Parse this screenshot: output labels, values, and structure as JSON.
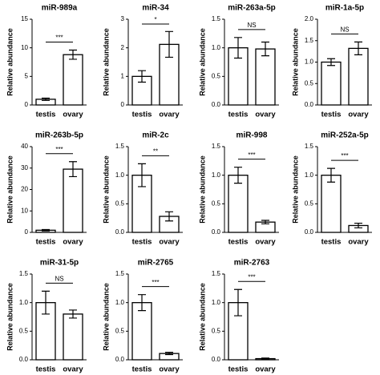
{
  "chart_data": [
    {
      "type": "bar",
      "title": "miR-989a",
      "y_label": "Relative abundance",
      "categories": [
        "testis",
        "ovary"
      ],
      "values": [
        1.0,
        8.8
      ],
      "errors": [
        0.2,
        0.8
      ],
      "annotation": "***",
      "ylim": [
        0,
        15
      ],
      "yticks": [
        0,
        5,
        10,
        15
      ]
    },
    {
      "type": "bar",
      "title": "miR-34",
      "y_label": "Relative abundance",
      "categories": [
        "testis",
        "ovary"
      ],
      "values": [
        1.0,
        2.12
      ],
      "errors": [
        0.2,
        0.45
      ],
      "annotation": "*",
      "ylim": [
        0,
        3
      ],
      "yticks": [
        0,
        1,
        2,
        3
      ]
    },
    {
      "type": "bar",
      "title": "miR-263a-5p",
      "y_label": "Relative abundance",
      "categories": [
        "testis",
        "ovary"
      ],
      "values": [
        1.0,
        0.98
      ],
      "errors": [
        0.18,
        0.12
      ],
      "annotation": "NS",
      "ylim": [
        0,
        1.5
      ],
      "yticks": [
        {
          "value": 0,
          "label": "0.0"
        },
        0.5,
        {
          "value": 1,
          "label": "1.0"
        },
        1.5
      ]
    },
    {
      "type": "bar",
      "title": "miR-1a-5p",
      "y_label": "Relative abundance",
      "categories": [
        "testis",
        "ovary"
      ],
      "values": [
        1.0,
        1.32
      ],
      "errors": [
        0.08,
        0.15
      ],
      "annotation": "NS",
      "ylim": [
        0,
        2
      ],
      "yticks": [
        {
          "value": 0,
          "label": "0.0"
        },
        0.5,
        {
          "value": 1,
          "label": "1.0"
        },
        1.5,
        {
          "value": 2,
          "label": "2.0"
        }
      ]
    },
    {
      "type": "bar",
      "title": "miR-263b-5p",
      "y_label": "Relative abundance",
      "categories": [
        "testis",
        "ovary"
      ],
      "values": [
        1.0,
        29.5
      ],
      "errors": [
        0.3,
        3.5
      ],
      "annotation": "***",
      "ylim": [
        0,
        40
      ],
      "yticks": [
        0,
        10,
        20,
        30,
        40
      ]
    },
    {
      "type": "bar",
      "title": "miR-2c",
      "y_label": "Relative abundance",
      "categories": [
        "testis",
        "ovary"
      ],
      "values": [
        1.0,
        0.28
      ],
      "errors": [
        0.2,
        0.08
      ],
      "annotation": "**",
      "ylim": [
        0,
        1.5
      ],
      "yticks": [
        {
          "value": 0,
          "label": "0.0"
        },
        0.5,
        {
          "value": 1,
          "label": "1.0"
        },
        1.5
      ]
    },
    {
      "type": "bar",
      "title": "miR-998",
      "y_label": "Relative abundance",
      "categories": [
        "testis",
        "ovary"
      ],
      "values": [
        1.0,
        0.18
      ],
      "errors": [
        0.14,
        0.03
      ],
      "annotation": "***",
      "ylim": [
        0,
        1.5
      ],
      "yticks": [
        {
          "value": 0,
          "label": "0.0"
        },
        0.5,
        {
          "value": 1,
          "label": "1.0"
        },
        1.5
      ]
    },
    {
      "type": "bar",
      "title": "miR-252a-5p",
      "y_label": "Relative abundance",
      "categories": [
        "testis",
        "ovary"
      ],
      "values": [
        1.0,
        0.12
      ],
      "errors": [
        0.12,
        0.04
      ],
      "annotation": "***",
      "ylim": [
        0,
        1.5
      ],
      "yticks": [
        {
          "value": 0,
          "label": "0.0"
        },
        0.5,
        {
          "value": 1,
          "label": "1.0"
        },
        1.5
      ]
    },
    {
      "type": "bar",
      "title": "miR-31-5p",
      "y_label": "Relative abundance",
      "categories": [
        "testis",
        "ovary"
      ],
      "values": [
        1.0,
        0.8
      ],
      "errors": [
        0.2,
        0.07
      ],
      "annotation": "NS",
      "ylim": [
        0,
        1.5
      ],
      "yticks": [
        {
          "value": 0,
          "label": "0.0"
        },
        0.5,
        {
          "value": 1,
          "label": "1.0"
        },
        1.5
      ]
    },
    {
      "type": "bar",
      "title": "miR-2765",
      "y_label": "Relative abundance",
      "categories": [
        "testis",
        "ovary"
      ],
      "values": [
        1.0,
        0.11
      ],
      "errors": [
        0.14,
        0.02
      ],
      "annotation": "***",
      "ylim": [
        0,
        1.5
      ],
      "yticks": [
        {
          "value": 0,
          "label": "0.0"
        },
        0.5,
        {
          "value": 1,
          "label": "1.0"
        },
        1.5
      ]
    },
    {
      "type": "bar",
      "title": "miR-2763",
      "y_label": "Relative abundance",
      "categories": [
        "testis",
        "ovary"
      ],
      "values": [
        1.0,
        0.02
      ],
      "errors": [
        0.23,
        0.01
      ],
      "annotation": "***",
      "ylim": [
        0,
        1.5
      ],
      "yticks": [
        {
          "value": 0,
          "label": "0.0"
        },
        0.5,
        {
          "value": 1,
          "label": "1.0"
        },
        1.5
      ]
    }
  ]
}
